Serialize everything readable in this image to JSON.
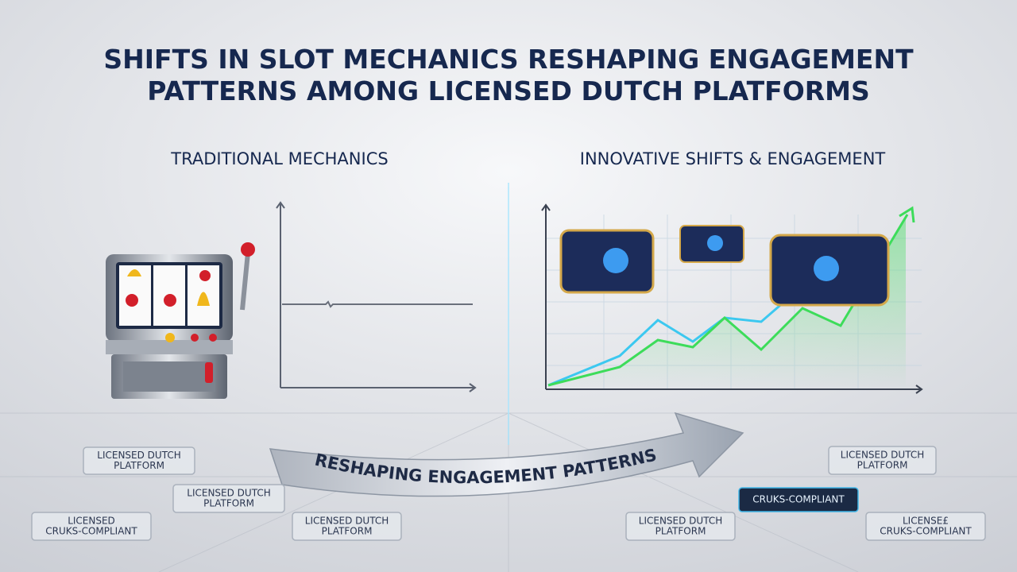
{
  "header": {
    "title_lines": [
      "SHIFTS IN SLOT MECHANICS RESHAPING ENGAGEMENT",
      "PATTERNS AMONG LICENSED DUTCH PLATFORMS"
    ]
  },
  "left_panel": {
    "heading": "TRADITIONAL MECHANICS"
  },
  "right_panel": {
    "heading": "INNOVATIVE SHIFTS & ENGAGEMENT"
  },
  "arrow": {
    "label": "RESHAPING ENGAGEMENT PATTERNS"
  },
  "badges": [
    {
      "lines": [
        "LICENSED DUTCH",
        "PLATFORM"
      ]
    },
    {
      "lines": [
        "LICENSED DUTCH",
        "PLATFORM"
      ]
    },
    {
      "lines": [
        "LICENSED",
        "CRUKS-COMPLIANT"
      ]
    },
    {
      "lines": [
        "LICENSED DUTCH",
        "PLATFORM"
      ]
    },
    {
      "lines": [
        "LICENSED DUTCH",
        "PLATFORM"
      ]
    },
    {
      "lines": [
        "CRUKS-COMPLIANT"
      ]
    },
    {
      "lines": [
        "LICENSED DUTCH",
        "PLATFORM"
      ]
    },
    {
      "lines": [
        "LICENSE£",
        "CRUKS-COMPLIANT"
      ]
    }
  ]
}
